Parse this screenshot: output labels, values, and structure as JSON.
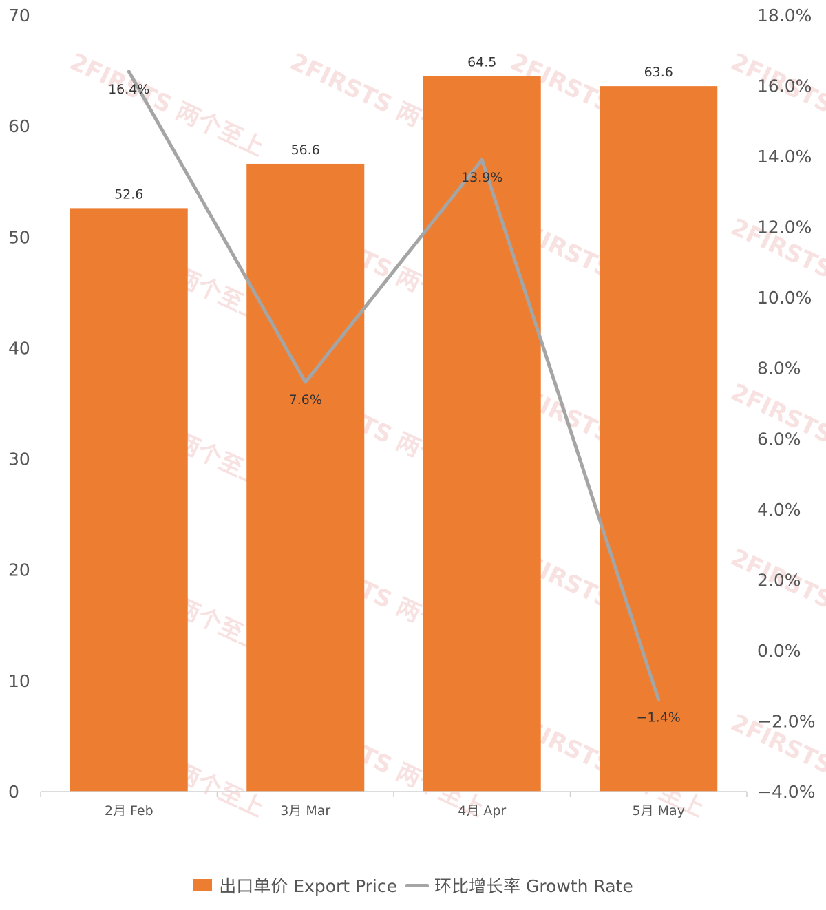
{
  "chart_data": {
    "type": "bar",
    "categories": [
      "2月 Feb",
      "3月 Mar",
      "4月 Apr",
      "5月 May"
    ],
    "series": [
      {
        "name": "出口单价 Export Price",
        "type": "bar",
        "axis": "left",
        "color": "#ED7D31",
        "values": [
          52.6,
          56.6,
          64.5,
          63.6
        ],
        "labels": [
          "52.6",
          "56.6",
          "64.5",
          "63.6"
        ]
      },
      {
        "name": "环比增长率 Growth Rate",
        "type": "line",
        "axis": "right",
        "color": "#A5A5A5",
        "values": [
          16.4,
          7.6,
          13.9,
          -1.4
        ],
        "labels": [
          "16.4%",
          "7.6%",
          "13.9%",
          "−1.4%"
        ]
      }
    ],
    "y_left": {
      "ylim": [
        0,
        70
      ],
      "ticks": [
        0,
        10,
        20,
        30,
        40,
        50,
        60,
        70
      ],
      "tick_labels": [
        "0",
        "10",
        "20",
        "30",
        "40",
        "50",
        "60",
        "70"
      ]
    },
    "y_right": {
      "ylim": [
        -4,
        18
      ],
      "ticks": [
        -4,
        -2,
        0,
        2,
        4,
        6,
        8,
        10,
        12,
        14,
        16,
        18
      ],
      "tick_labels": [
        "−4.0%",
        "−2.0%",
        "0.0%",
        "2.0%",
        "4.0%",
        "6.0%",
        "8.0%",
        "10.0%",
        "12.0%",
        "14.0%",
        "16.0%",
        "18.0%"
      ]
    },
    "grid": false,
    "legend_position": "bottom",
    "watermark": "2FIRSTS 两个至上"
  }
}
